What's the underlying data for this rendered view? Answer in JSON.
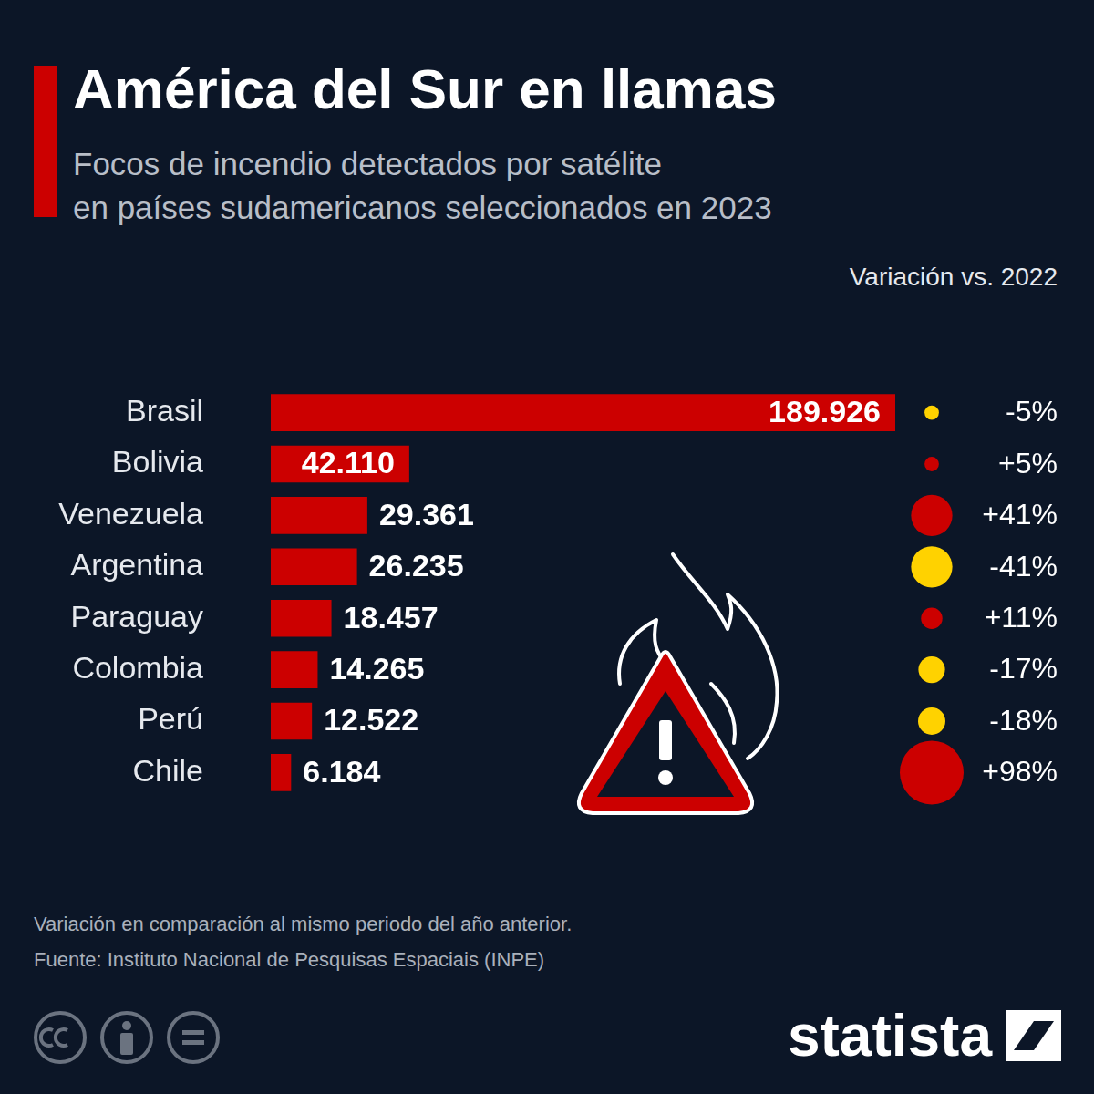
{
  "chart_data": {
    "type": "bar",
    "orientation": "horizontal",
    "title": "América del Sur en llamas",
    "subtitle": [
      "Focos de incendio detectados por satélite",
      "en países sudamericanos seleccionados en 2023"
    ],
    "categories": [
      "Brasil",
      "Bolivia",
      "Venezuela",
      "Argentina",
      "Paraguay",
      "Colombia",
      "Perú",
      "Chile"
    ],
    "values": [
      189926,
      42110,
      29361,
      26235,
      18457,
      14265,
      12522,
      6184
    ],
    "value_labels": [
      "189.926",
      "42.110",
      "29.361",
      "26.235",
      "18.457",
      "14.265",
      "12.522",
      "6.184"
    ],
    "color": "#cc0000",
    "data_labels": true,
    "grid": false,
    "tick_labels": "y",
    "variation": {
      "title": "Variación vs. 2022",
      "values": [
        -5,
        5,
        41,
        -41,
        11,
        -17,
        -18,
        98
      ],
      "value_labels": [
        "-5%",
        "+5%",
        "+41%",
        "-41%",
        "+11%",
        "-17%",
        "-18%",
        "+98%"
      ],
      "colors": [
        "#ffd200",
        "#cc0000",
        "#cc0000",
        "#ffd200",
        "#cc0000",
        "#ffd200",
        "#ffd200",
        "#cc0000"
      ]
    },
    "note": "Variación en comparación al mismo periodo del año anterior.",
    "source": "Fuente: Instituto Nacional de Pesquisas Espaciais (INPE)",
    "brand": "statista"
  }
}
